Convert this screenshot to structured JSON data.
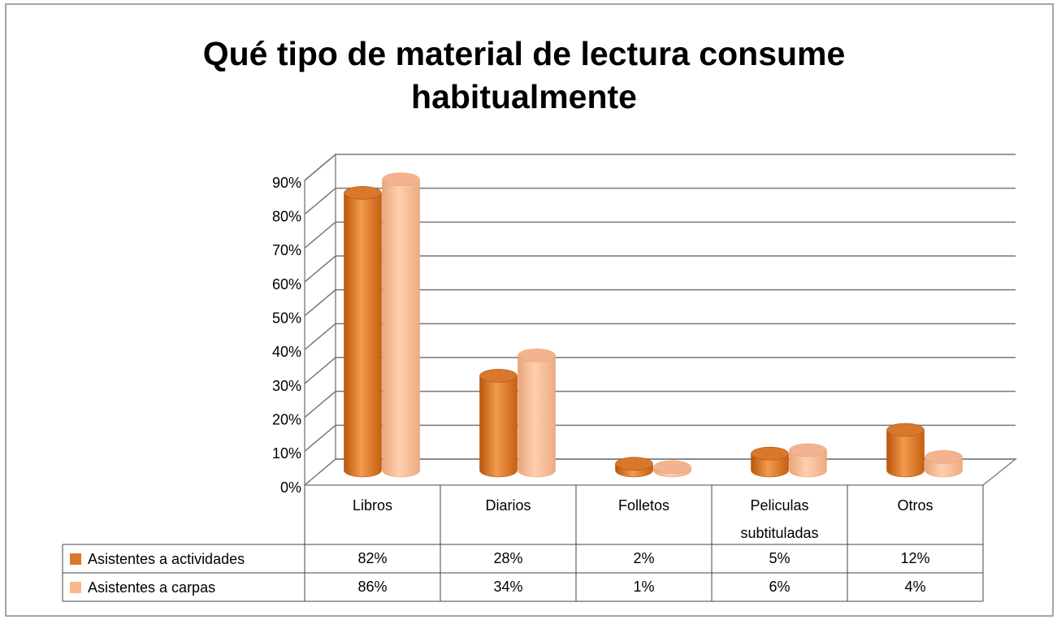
{
  "chart_data": {
    "type": "bar3d",
    "title": "Qué tipo de material de lectura consume habitualmente",
    "categories": [
      "Libros",
      "Diarios",
      "Folletos",
      "Peliculas subtituladas",
      "Otros"
    ],
    "series": [
      {
        "name": "Asistentes a actividades",
        "color": "#E46C0A",
        "values": [
          82,
          28,
          2,
          5,
          12
        ],
        "value_labels": [
          "82%",
          "28%",
          "2%",
          "5%",
          "12%"
        ]
      },
      {
        "name": "Asistentes a carpas",
        "color": "#FAC090",
        "values": [
          86,
          34,
          1,
          6,
          4
        ],
        "value_labels": [
          "86%",
          "34%",
          "1%",
          "6%",
          "4%"
        ]
      }
    ],
    "ylim": [
      0,
      90
    ],
    "yticks": [
      {
        "value": 0,
        "label": "0%"
      },
      {
        "value": 10,
        "label": "10%"
      },
      {
        "value": 20,
        "label": "20%"
      },
      {
        "value": 30,
        "label": "30%"
      },
      {
        "value": 40,
        "label": "40%"
      },
      {
        "value": 50,
        "label": "50%"
      },
      {
        "value": 60,
        "label": "60%"
      },
      {
        "value": 70,
        "label": "70%"
      },
      {
        "value": 80,
        "label": "80%"
      },
      {
        "value": 90,
        "label": "90%"
      }
    ],
    "grid": true,
    "data_table": true
  }
}
